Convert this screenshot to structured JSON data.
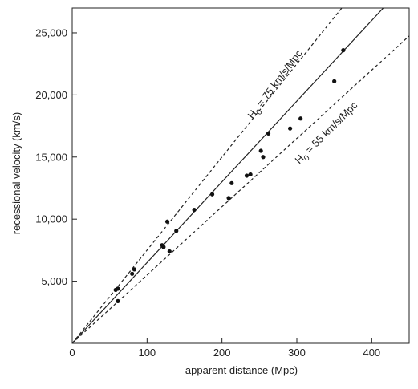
{
  "chart_data": {
    "type": "scatter",
    "title": "",
    "xlabel": "apparent distance (Mpc)",
    "ylabel": "recessional velocity (km/s)",
    "xlim": [
      0,
      450
    ],
    "ylim": [
      0,
      27000
    ],
    "grid": false,
    "x_ticks": [
      0,
      100,
      200,
      300,
      400
    ],
    "x_tick_labels": [
      "0",
      "100",
      "200",
      "300",
      "400"
    ],
    "y_ticks": [
      5000,
      10000,
      15000,
      20000,
      25000
    ],
    "y_tick_labels": [
      "5,000",
      "10,000",
      "15,000",
      "20,000",
      "25,000"
    ],
    "points": [
      {
        "x": 58,
        "y": 4300
      },
      {
        "x": 61,
        "y": 4400
      },
      {
        "x": 61,
        "y": 3400
      },
      {
        "x": 80,
        "y": 5600
      },
      {
        "x": 83,
        "y": 5950
      },
      {
        "x": 120,
        "y": 7900
      },
      {
        "x": 122,
        "y": 7750
      },
      {
        "x": 127,
        "y": 9800
      },
      {
        "x": 130,
        "y": 7400
      },
      {
        "x": 139,
        "y": 9050
      },
      {
        "x": 163,
        "y": 10750
      },
      {
        "x": 187,
        "y": 12000
      },
      {
        "x": 209,
        "y": 11700
      },
      {
        "x": 213,
        "y": 12900
      },
      {
        "x": 233,
        "y": 13500
      },
      {
        "x": 238,
        "y": 13600
      },
      {
        "x": 252,
        "y": 15500
      },
      {
        "x": 255,
        "y": 15000
      },
      {
        "x": 262,
        "y": 16900
      },
      {
        "x": 291,
        "y": 17300
      },
      {
        "x": 305,
        "y": 18100
      },
      {
        "x": 350,
        "y": 21100
      },
      {
        "x": 362,
        "y": 23600
      }
    ],
    "lines": [
      {
        "slope": 65,
        "style": "solid",
        "label": ""
      },
      {
        "slope": 75,
        "style": "dashed",
        "label": "H0 = 75 km/s/Mpc"
      },
      {
        "slope": 55,
        "style": "dashed",
        "label": "H0 = 55 km/s/Mpc"
      }
    ],
    "annotations": [
      {
        "base": "H",
        "sub": "0",
        "rest": " = 75 km/s/Mpc"
      },
      {
        "base": "H",
        "sub": "0",
        "rest": " = 55 km/s/Mpc"
      }
    ]
  },
  "colors": {
    "axis": "#222222",
    "point": "#111111",
    "line": "#222222",
    "background": "#ffffff"
  }
}
